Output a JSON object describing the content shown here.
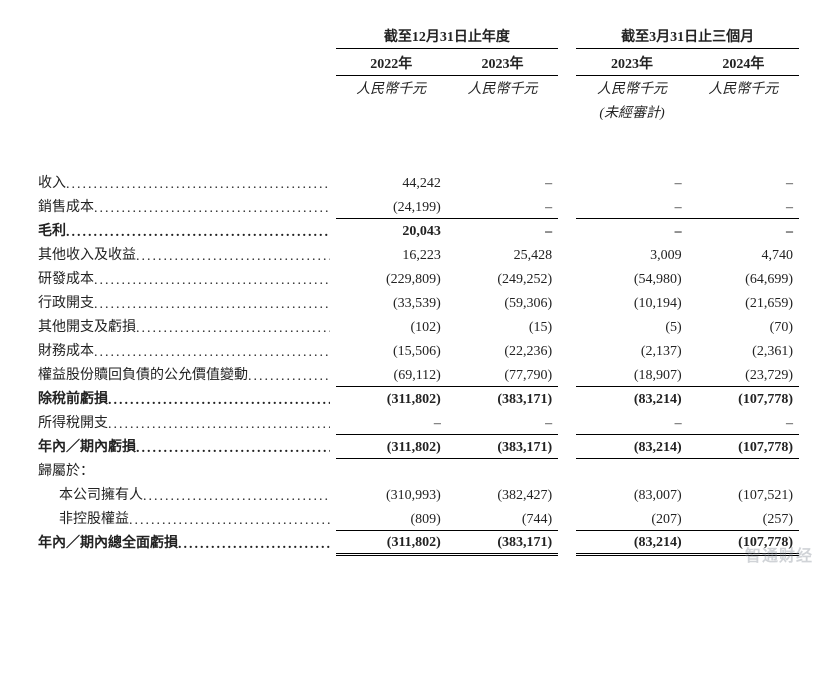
{
  "headers": {
    "group_annual": "截至12月31日止年度",
    "group_quarter": "截至3月31日止三個月",
    "years": [
      "2022年",
      "2023年",
      "2023年",
      "2024年"
    ],
    "units": [
      "人民幣千元",
      "人民幣千元",
      "人民幣千元",
      "人民幣千元"
    ],
    "unaudited": "(未經審計)"
  },
  "rows": [
    {
      "label": "收入",
      "v": [
        "44,242",
        "–",
        "–",
        "–"
      ],
      "bold": false,
      "border": [
        "",
        "",
        "",
        ""
      ]
    },
    {
      "label": "銷售成本",
      "v": [
        "(24,199)",
        "–",
        "–",
        "–"
      ],
      "bold": false,
      "border": [
        "u",
        "u",
        "u",
        "u"
      ]
    },
    {
      "label": "毛利",
      "v": [
        "20,043",
        "–",
        "–",
        "–"
      ],
      "bold": true,
      "border": [
        "",
        "",
        "",
        ""
      ]
    },
    {
      "label": "其他收入及收益",
      "v": [
        "16,223",
        "25,428",
        "3,009",
        "4,740"
      ],
      "bold": false,
      "border": [
        "",
        "",
        "",
        ""
      ]
    },
    {
      "label": "研發成本",
      "v": [
        "(229,809)",
        "(249,252)",
        "(54,980)",
        "(64,699)"
      ],
      "bold": false,
      "border": [
        "",
        "",
        "",
        ""
      ]
    },
    {
      "label": "行政開支",
      "v": [
        "(33,539)",
        "(59,306)",
        "(10,194)",
        "(21,659)"
      ],
      "bold": false,
      "border": [
        "",
        "",
        "",
        ""
      ]
    },
    {
      "label": "其他開支及虧損",
      "v": [
        "(102)",
        "(15)",
        "(5)",
        "(70)"
      ],
      "bold": false,
      "border": [
        "",
        "",
        "",
        ""
      ]
    },
    {
      "label": "財務成本",
      "v": [
        "(15,506)",
        "(22,236)",
        "(2,137)",
        "(2,361)"
      ],
      "bold": false,
      "border": [
        "",
        "",
        "",
        ""
      ]
    },
    {
      "label": "權益股份贖回負債的公允價值變動",
      "v": [
        "(69,112)",
        "(77,790)",
        "(18,907)",
        "(23,729)"
      ],
      "bold": false,
      "border": [
        "u",
        "u",
        "u",
        "u"
      ]
    },
    {
      "label": "除稅前虧損",
      "v": [
        "(311,802)",
        "(383,171)",
        "(83,214)",
        "(107,778)"
      ],
      "bold": true,
      "border": [
        "",
        "",
        "",
        ""
      ]
    },
    {
      "label": "所得稅開支",
      "v": [
        "–",
        "–",
        "–",
        "–"
      ],
      "bold": false,
      "border": [
        "u",
        "u",
        "u",
        "u"
      ]
    },
    {
      "label": "年內／期內虧損",
      "v": [
        "(311,802)",
        "(383,171)",
        "(83,214)",
        "(107,778)"
      ],
      "bold": true,
      "border": [
        "u",
        "u",
        "u",
        "u"
      ]
    },
    {
      "label": "歸屬於：",
      "v": [
        "",
        "",
        "",
        ""
      ],
      "bold": false,
      "border": [
        "",
        "",
        "",
        ""
      ],
      "nodots": true
    },
    {
      "label": "本公司擁有人",
      "v": [
        "(310,993)",
        "(382,427)",
        "(83,007)",
        "(107,521)"
      ],
      "bold": false,
      "border": [
        "",
        "",
        "",
        ""
      ],
      "indent": true
    },
    {
      "label": "非控股權益",
      "v": [
        "(809)",
        "(744)",
        "(207)",
        "(257)"
      ],
      "bold": false,
      "border": [
        "u",
        "u",
        "u",
        "u"
      ],
      "indent": true
    },
    {
      "label": "年內／期內總全面虧損",
      "v": [
        "(311,802)",
        "(383,171)",
        "(83,214)",
        "(107,778)"
      ],
      "bold": true,
      "border": [
        "d",
        "d",
        "d",
        "d"
      ]
    }
  ],
  "watermark": "智通财经"
}
